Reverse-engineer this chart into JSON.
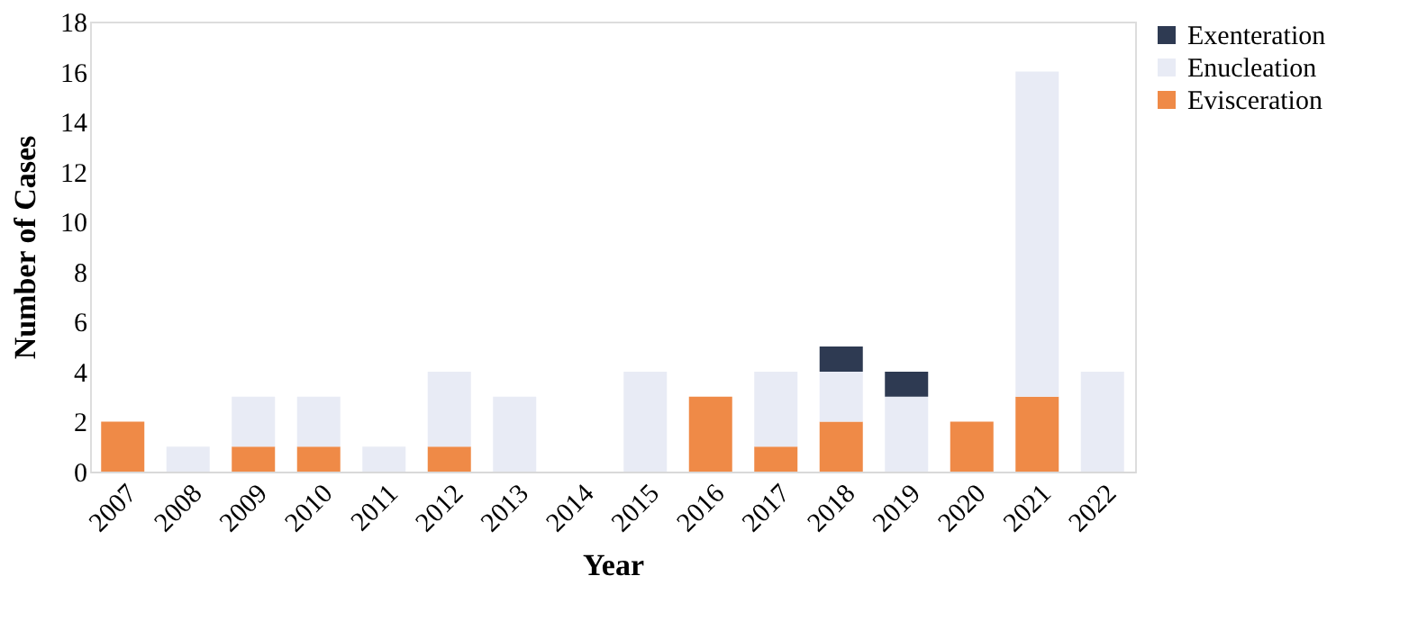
{
  "chart_data": {
    "type": "bar",
    "stacked": true,
    "xlabel": "Year",
    "ylabel": "Number of Cases",
    "categories": [
      "2007",
      "2008",
      "2009",
      "2010",
      "2011",
      "2012",
      "2013",
      "2014",
      "2015",
      "2016",
      "2017",
      "2018",
      "2019",
      "2020",
      "2021",
      "2022"
    ],
    "series": [
      {
        "name": "Evisceration",
        "color": "#ef8a47",
        "values": [
          2,
          0,
          1,
          1,
          0,
          1,
          0,
          0,
          0,
          3,
          1,
          2,
          0,
          2,
          3,
          0
        ]
      },
      {
        "name": "Enucleation",
        "color": "#e8ebf5",
        "values": [
          0,
          1,
          2,
          2,
          1,
          3,
          3,
          0,
          4,
          0,
          3,
          2,
          3,
          0,
          13,
          4
        ]
      },
      {
        "name": "Exenteration",
        "color": "#2e3a52",
        "values": [
          0,
          0,
          0,
          0,
          0,
          0,
          0,
          0,
          0,
          0,
          0,
          1,
          1,
          0,
          0,
          0
        ]
      }
    ],
    "ylim": [
      0,
      18
    ],
    "yticks": [
      0,
      2,
      4,
      6,
      8,
      10,
      12,
      14,
      16,
      18
    ],
    "grid": false,
    "legend": "right"
  }
}
